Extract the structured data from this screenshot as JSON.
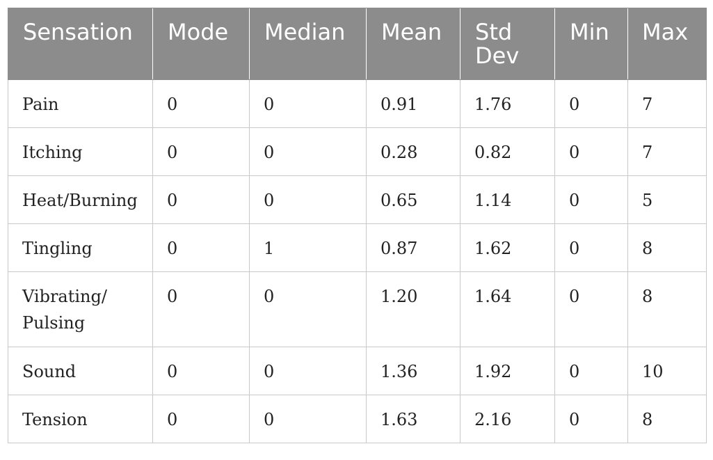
{
  "table": {
    "columns": [
      "Sensation",
      "Mode",
      "Median",
      "Mean",
      "Std Dev",
      "Min",
      "Max"
    ],
    "rows": [
      [
        "Pain",
        "0",
        "0",
        "0.91",
        "1.76",
        "0",
        "7"
      ],
      [
        "Itching",
        "0",
        "0",
        "0.28",
        "0.82",
        "0",
        "7"
      ],
      [
        "Heat/Burning",
        "0",
        "0",
        "0.65",
        "1.14",
        "0",
        "5"
      ],
      [
        "Tingling",
        "0",
        "1",
        "0.87",
        "1.62",
        "0",
        "8"
      ],
      [
        "Vibrating/ Pulsing",
        "0",
        "0",
        "1.20",
        "1.64",
        "0",
        "8"
      ],
      [
        "Sound",
        "0",
        "0",
        "1.36",
        "1.92",
        "0",
        "10"
      ],
      [
        "Tension",
        "0",
        "0",
        "1.63",
        "2.16",
        "0",
        "8"
      ]
    ]
  }
}
